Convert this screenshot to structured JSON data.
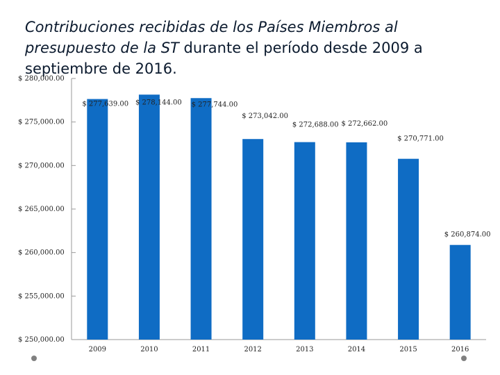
{
  "title": {
    "part1": "Contribuciones recibidas de los Países Miembros al presupuesto de la ST",
    "part2": " durante el período desde 2009 a septiembre de 2016."
  },
  "chart_data": {
    "type": "bar",
    "title": "Contribuciones recibidas de los Países Miembros al presupuesto de la ST durante el período desde 2009 a septiembre de 2016.",
    "categories": [
      "2009",
      "2010",
      "2011",
      "2012",
      "2013",
      "2014",
      "2015",
      "2016"
    ],
    "values": [
      277639,
      278144,
      277744,
      273042,
      272688,
      272662,
      270771,
      260874
    ],
    "data_labels": [
      "$ 277,639.00",
      "$ 278,144.00",
      "$ 277,744.00",
      "$ 273,042.00",
      "$ 272,688.00",
      "$ 272,662.00",
      "$ 270,771.00",
      "$ 260,874.00"
    ],
    "yticks": [
      250000,
      255000,
      260000,
      265000,
      270000,
      275000,
      280000
    ],
    "ytick_labels": [
      "$ 250,000.00",
      "$ 255,000.00",
      "$ 260,000.00",
      "$ 265,000.00",
      "$ 270,000.00",
      "$ 275,000.00",
      "$ 280,000.00"
    ],
    "ylim": [
      250000,
      280000
    ],
    "grid": false,
    "legend": "none",
    "bar_color": "#0f6cc4"
  }
}
